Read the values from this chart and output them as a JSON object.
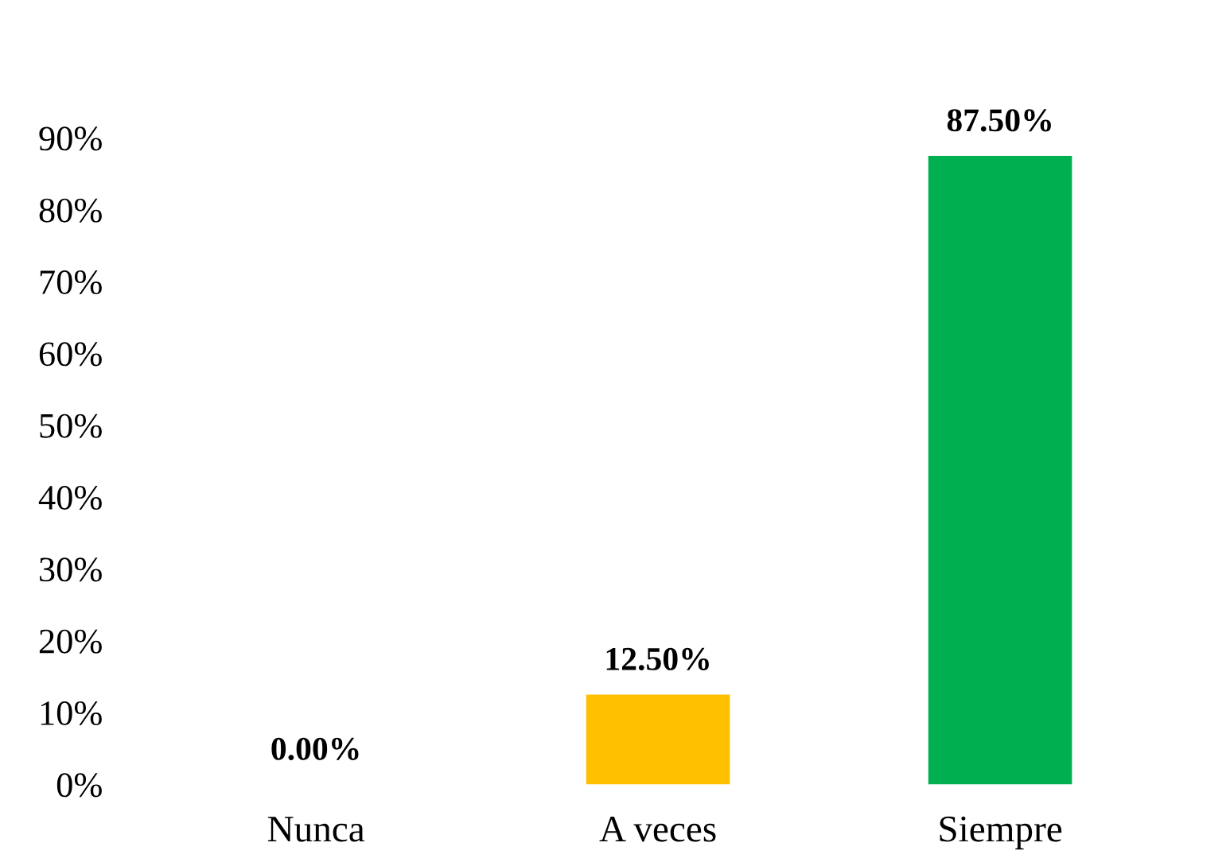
{
  "chart_data": {
    "type": "bar",
    "categories": [
      "Nunca",
      "A veces",
      "Siempre"
    ],
    "values": [
      0,
      12.5,
      87.5
    ],
    "colors": [
      "#990000",
      "#ffc000",
      "#00b050"
    ],
    "value_labels": [
      "0.00%",
      "12.50%",
      "87.50%"
    ],
    "ylim": [
      0,
      90
    ],
    "yticks": [
      {
        "value": 0,
        "label": "0%"
      },
      {
        "value": 10,
        "label": "10%"
      },
      {
        "value": 20,
        "label": "20%"
      },
      {
        "value": 30,
        "label": "30%"
      },
      {
        "value": 40,
        "label": "40%"
      },
      {
        "value": 50,
        "label": "50%"
      },
      {
        "value": 60,
        "label": "60%"
      },
      {
        "value": 70,
        "label": "70%"
      },
      {
        "value": 80,
        "label": "80%"
      },
      {
        "value": 90,
        "label": "90%"
      }
    ],
    "grid": false,
    "legend": false
  }
}
